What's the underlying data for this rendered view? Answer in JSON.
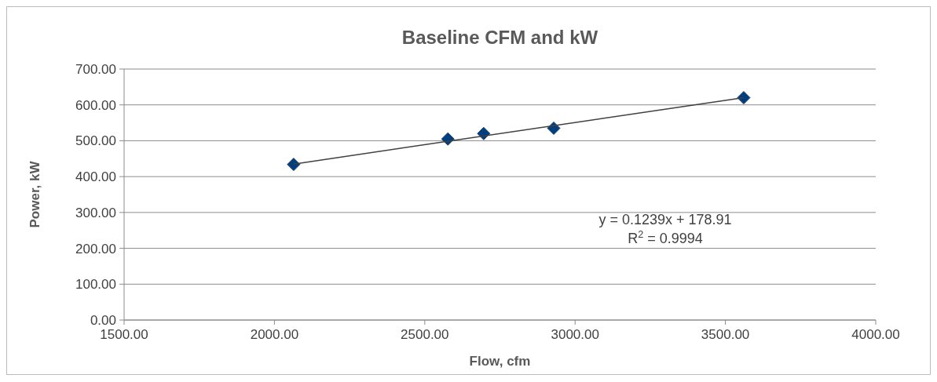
{
  "chart_data": {
    "type": "scatter",
    "title": "Baseline CFM and kW",
    "xlabel": "Flow, cfm",
    "ylabel": "Power, kW",
    "series": [
      {
        "color": "#003f7f",
        "marker": "diamond",
        "x": [
          2064,
          2577,
          2696,
          2929,
          3561
        ],
        "values": [
          434,
          505,
          520,
          535,
          620
        ]
      },
      {
        "type": "line",
        "color": "#404040",
        "marker": "none",
        "line_style": "solid",
        "x": [
          2064,
          3561
        ],
        "values": [
          435,
          620
        ]
      }
    ],
    "xlim": [
      1500,
      4000
    ],
    "xticks": [
      {
        "value": 1500,
        "label": "1500.00"
      },
      {
        "value": 2000,
        "label": "2000.00"
      },
      {
        "value": 2500,
        "label": "2500.00"
      },
      {
        "value": 3000,
        "label": "3000.00"
      },
      {
        "value": 3500,
        "label": "3500.00"
      },
      {
        "value": 4000,
        "label": "4000.00"
      }
    ],
    "ylim": [
      0,
      700
    ],
    "yticks": [
      {
        "value": 0,
        "label": "0.00"
      },
      {
        "value": 100,
        "label": "100.00"
      },
      {
        "value": 200,
        "label": "200.00"
      },
      {
        "value": 300,
        "label": "300.00"
      },
      {
        "value": 400,
        "label": "400.00"
      },
      {
        "value": 500,
        "label": "500.00"
      },
      {
        "value": 600,
        "label": "600.00"
      },
      {
        "value": 700,
        "label": "700.00"
      }
    ],
    "grid": "y",
    "annotations": [
      "y = 0.1239x + 178.91",
      "R$^{2}$ = 0.9994"
    ]
  }
}
